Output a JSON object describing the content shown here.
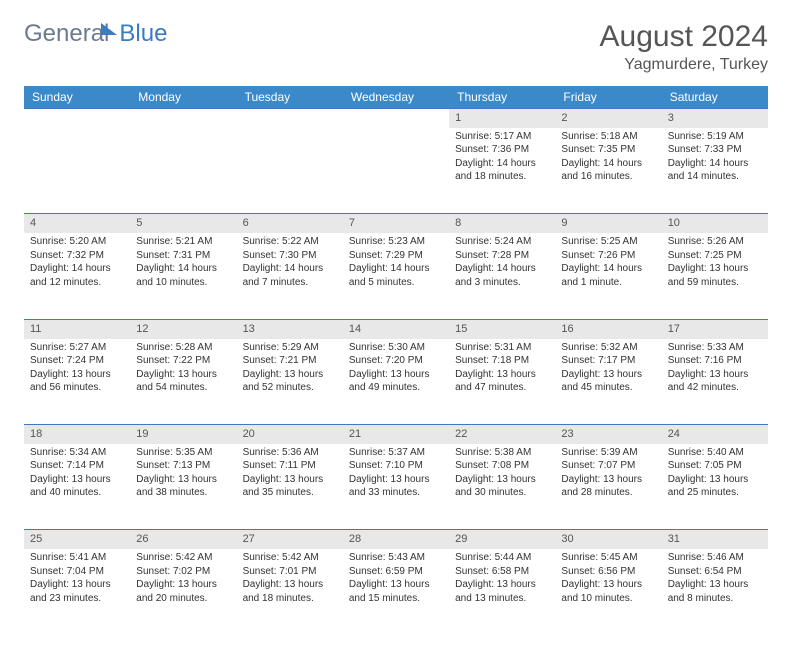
{
  "logo": {
    "part1": "General",
    "part2": "Blue"
  },
  "title": "August 2024",
  "location": "Yagmurdere, Turkey",
  "colors": {
    "header_bg": "#3b89c9",
    "header_text": "#ffffff",
    "daynum_bg": "#e8e8e8",
    "row_border": "#3b7bc4",
    "body_text": "#333333",
    "title_text": "#555555"
  },
  "typography": {
    "title_fontsize": 30,
    "location_fontsize": 16,
    "th_fontsize": 12,
    "cell_fontsize": 10
  },
  "weekdays": [
    "Sunday",
    "Monday",
    "Tuesday",
    "Wednesday",
    "Thursday",
    "Friday",
    "Saturday"
  ],
  "weeks": [
    [
      null,
      null,
      null,
      null,
      {
        "n": "1",
        "sr": "5:17 AM",
        "ss": "7:36 PM",
        "dl": "14 hours and 18 minutes."
      },
      {
        "n": "2",
        "sr": "5:18 AM",
        "ss": "7:35 PM",
        "dl": "14 hours and 16 minutes."
      },
      {
        "n": "3",
        "sr": "5:19 AM",
        "ss": "7:33 PM",
        "dl": "14 hours and 14 minutes."
      }
    ],
    [
      {
        "n": "4",
        "sr": "5:20 AM",
        "ss": "7:32 PM",
        "dl": "14 hours and 12 minutes."
      },
      {
        "n": "5",
        "sr": "5:21 AM",
        "ss": "7:31 PM",
        "dl": "14 hours and 10 minutes."
      },
      {
        "n": "6",
        "sr": "5:22 AM",
        "ss": "7:30 PM",
        "dl": "14 hours and 7 minutes."
      },
      {
        "n": "7",
        "sr": "5:23 AM",
        "ss": "7:29 PM",
        "dl": "14 hours and 5 minutes."
      },
      {
        "n": "8",
        "sr": "5:24 AM",
        "ss": "7:28 PM",
        "dl": "14 hours and 3 minutes."
      },
      {
        "n": "9",
        "sr": "5:25 AM",
        "ss": "7:26 PM",
        "dl": "14 hours and 1 minute."
      },
      {
        "n": "10",
        "sr": "5:26 AM",
        "ss": "7:25 PM",
        "dl": "13 hours and 59 minutes."
      }
    ],
    [
      {
        "n": "11",
        "sr": "5:27 AM",
        "ss": "7:24 PM",
        "dl": "13 hours and 56 minutes."
      },
      {
        "n": "12",
        "sr": "5:28 AM",
        "ss": "7:22 PM",
        "dl": "13 hours and 54 minutes."
      },
      {
        "n": "13",
        "sr": "5:29 AM",
        "ss": "7:21 PM",
        "dl": "13 hours and 52 minutes."
      },
      {
        "n": "14",
        "sr": "5:30 AM",
        "ss": "7:20 PM",
        "dl": "13 hours and 49 minutes."
      },
      {
        "n": "15",
        "sr": "5:31 AM",
        "ss": "7:18 PM",
        "dl": "13 hours and 47 minutes."
      },
      {
        "n": "16",
        "sr": "5:32 AM",
        "ss": "7:17 PM",
        "dl": "13 hours and 45 minutes."
      },
      {
        "n": "17",
        "sr": "5:33 AM",
        "ss": "7:16 PM",
        "dl": "13 hours and 42 minutes."
      }
    ],
    [
      {
        "n": "18",
        "sr": "5:34 AM",
        "ss": "7:14 PM",
        "dl": "13 hours and 40 minutes."
      },
      {
        "n": "19",
        "sr": "5:35 AM",
        "ss": "7:13 PM",
        "dl": "13 hours and 38 minutes."
      },
      {
        "n": "20",
        "sr": "5:36 AM",
        "ss": "7:11 PM",
        "dl": "13 hours and 35 minutes."
      },
      {
        "n": "21",
        "sr": "5:37 AM",
        "ss": "7:10 PM",
        "dl": "13 hours and 33 minutes."
      },
      {
        "n": "22",
        "sr": "5:38 AM",
        "ss": "7:08 PM",
        "dl": "13 hours and 30 minutes."
      },
      {
        "n": "23",
        "sr": "5:39 AM",
        "ss": "7:07 PM",
        "dl": "13 hours and 28 minutes."
      },
      {
        "n": "24",
        "sr": "5:40 AM",
        "ss": "7:05 PM",
        "dl": "13 hours and 25 minutes."
      }
    ],
    [
      {
        "n": "25",
        "sr": "5:41 AM",
        "ss": "7:04 PM",
        "dl": "13 hours and 23 minutes."
      },
      {
        "n": "26",
        "sr": "5:42 AM",
        "ss": "7:02 PM",
        "dl": "13 hours and 20 minutes."
      },
      {
        "n": "27",
        "sr": "5:42 AM",
        "ss": "7:01 PM",
        "dl": "13 hours and 18 minutes."
      },
      {
        "n": "28",
        "sr": "5:43 AM",
        "ss": "6:59 PM",
        "dl": "13 hours and 15 minutes."
      },
      {
        "n": "29",
        "sr": "5:44 AM",
        "ss": "6:58 PM",
        "dl": "13 hours and 13 minutes."
      },
      {
        "n": "30",
        "sr": "5:45 AM",
        "ss": "6:56 PM",
        "dl": "13 hours and 10 minutes."
      },
      {
        "n": "31",
        "sr": "5:46 AM",
        "ss": "6:54 PM",
        "dl": "13 hours and 8 minutes."
      }
    ]
  ],
  "labels": {
    "sunrise": "Sunrise: ",
    "sunset": "Sunset: ",
    "daylight": "Daylight: "
  }
}
